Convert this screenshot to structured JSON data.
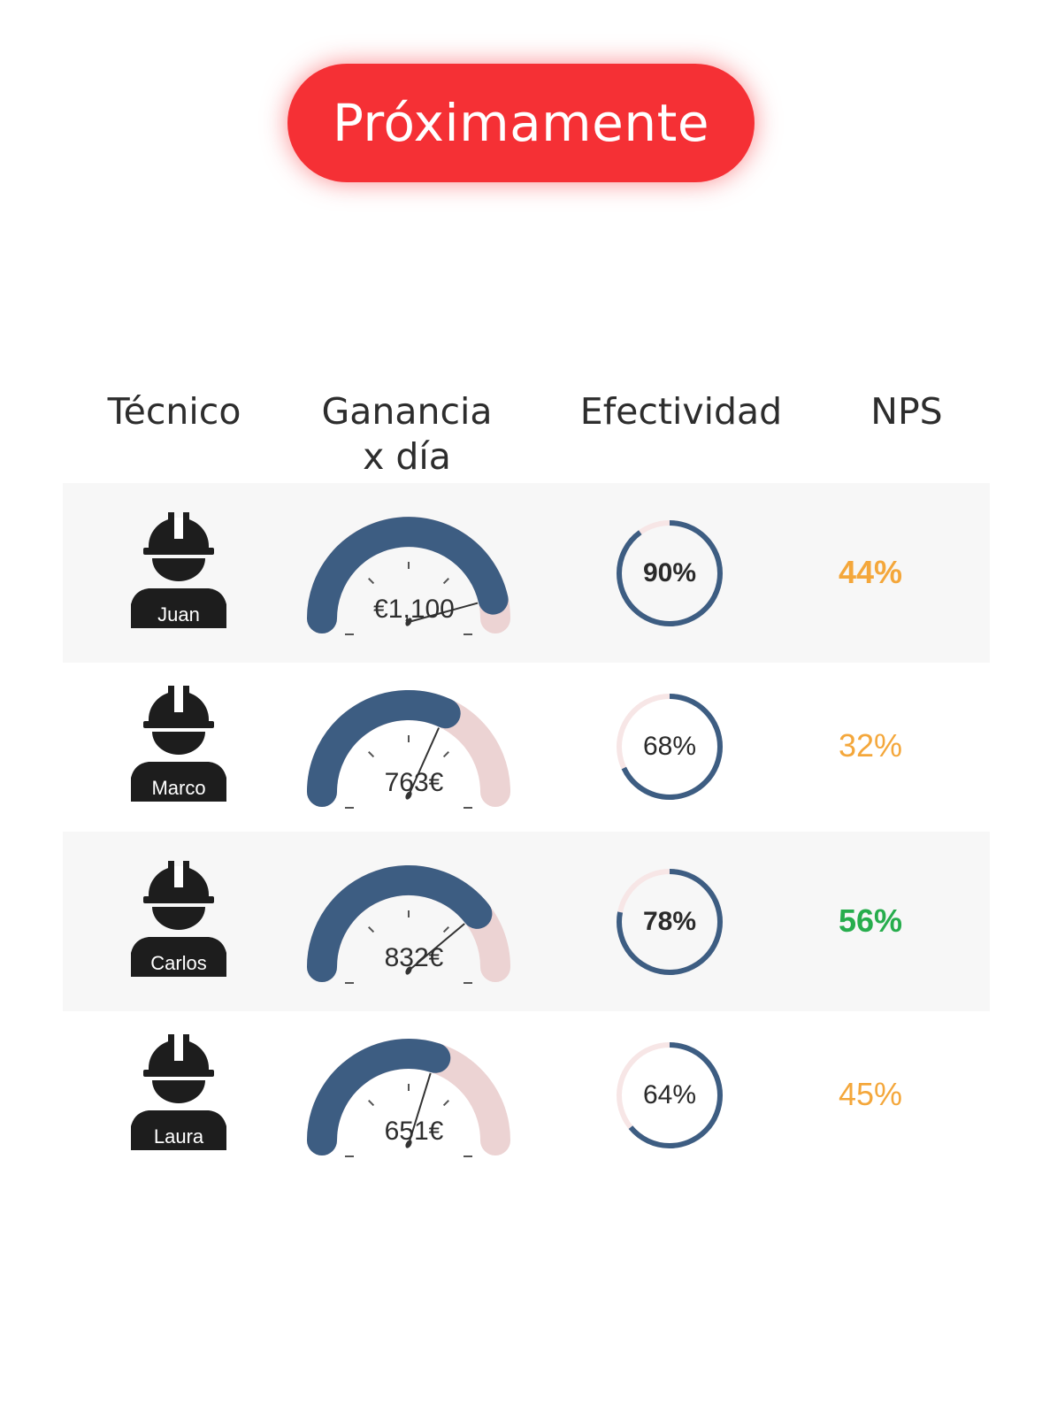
{
  "banner": {
    "label": "Próximamente"
  },
  "table": {
    "headers": {
      "tecnico": "Técnico",
      "ganancia_line1": "Ganancia",
      "ganancia_line2": "x día",
      "efectividad": "Efectividad",
      "nps": "NPS"
    },
    "rows": [
      {
        "name": "Juan",
        "ganancia": "€1,100",
        "ganancia_fraction": 0.93,
        "efectividad": "90%",
        "efectividad_fraction": 0.9,
        "nps": "44%",
        "nps_color": "#f4a73b"
      },
      {
        "name": "Marco",
        "ganancia": "763€",
        "ganancia_fraction": 0.64,
        "efectividad": "68%",
        "efectividad_fraction": 0.68,
        "nps": "32%",
        "nps_color": "#f4a73b"
      },
      {
        "name": "Carlos",
        "ganancia": "832€",
        "ganancia_fraction": 0.79,
        "efectividad": "78%",
        "efectividad_fraction": 0.78,
        "nps": "56%",
        "nps_color": "#27ad4d"
      },
      {
        "name": "Laura",
        "ganancia": "651€",
        "ganancia_fraction": 0.6,
        "efectividad": "64%",
        "efectividad_fraction": 0.64,
        "nps": "45%",
        "nps_color": "#f4a73b"
      }
    ]
  },
  "colors": {
    "banner": "#f53035",
    "gauge_fill": "#3d5d82",
    "gauge_track": "#ecd3d3",
    "donut_fill": "#3d5d82",
    "donut_track": "#f7e6e6",
    "row_shade": "#f7f7f7"
  },
  "icons": {
    "worker": "worker-helmet-icon"
  }
}
